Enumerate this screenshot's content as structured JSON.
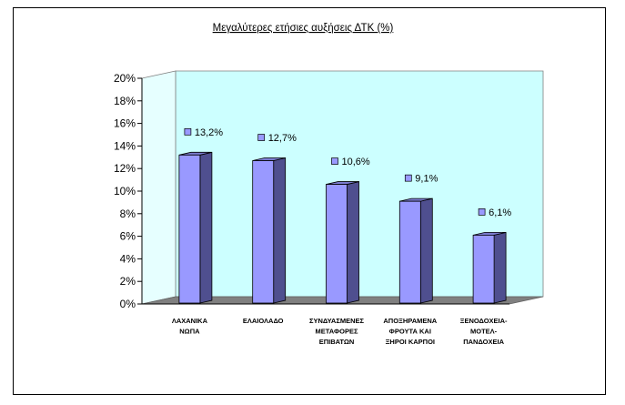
{
  "chart_data": {
    "type": "bar",
    "title": "Μεγαλύτερες ετήσιες αυξήσεις ΔΤΚ (%)",
    "categories": [
      [
        "ΛΑΧΑΝΙΚΑ",
        "ΝΩΠΑ"
      ],
      [
        "ΕΛΑΙΟΛΑΔΟ"
      ],
      [
        "ΣΥΝΔΥΑΣΜΕΝΕΣ",
        "ΜΕΤΑΦΟΡΕΣ",
        "ΕΠΙΒΑΤΩΝ"
      ],
      [
        "ΑΠΟΞΗΡΑΜΕΝΑ",
        "ΦΡΟΥΤΑ ΚΑΙ",
        "ΞΗΡΟΙ ΚΑΡΠΟΙ"
      ],
      [
        "ΞΕΝΟΔΟΧΕΙΑ-",
        "ΜΟΤΕΛ-",
        "ΠΑΝΔΟΧΕΙΑ"
      ]
    ],
    "values": [
      13.2,
      12.7,
      10.6,
      9.1,
      6.1
    ],
    "data_labels": [
      "13,2%",
      "12,7%",
      "10,6%",
      "9,1%",
      "6,1%"
    ],
    "y_ticks": [
      "0%",
      "2%",
      "4%",
      "6%",
      "8%",
      "10%",
      "12%",
      "14%",
      "16%",
      "18%",
      "20%"
    ],
    "ylim": [
      0,
      20
    ],
    "xlabel": "",
    "ylabel": "",
    "grid": false,
    "legend": "none",
    "colors": {
      "bar_front": "#9999ff",
      "bar_side": "#4f4f8f",
      "bar_top": "#7b7bcf",
      "wall": "#ccffff",
      "floor": "#808080",
      "label_marker": "#9999ff"
    }
  }
}
